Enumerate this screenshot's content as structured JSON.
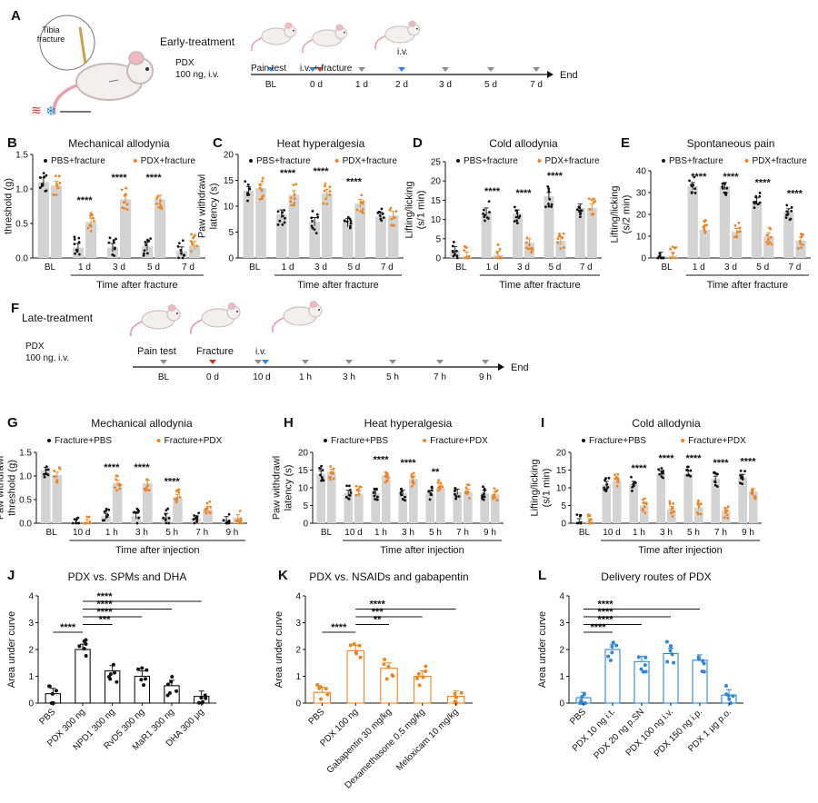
{
  "colors": {
    "pbs": "#111111",
    "pdx": "#f0831e",
    "bar_gray": "#d3d3d3",
    "blue": "#2f86d6",
    "red_arrow": "#c0392b",
    "gray_arrow": "#8c8c8c"
  },
  "timeline_early": {
    "letter": "A",
    "header": "Early-treatment",
    "drug_line1": "PDX",
    "drug_line2": "100 ng, i.v.",
    "inset_label": "Tibia\nfracture",
    "pain_test": "Pain test",
    "iv_fracture": "i.v. + fracture",
    "iv": "i.v.",
    "ticks": [
      "BL",
      "0 d",
      "1 d",
      "2 d",
      "3 d",
      "5 d",
      "7 d"
    ],
    "arrow_types": [
      "blue",
      "blue+red",
      "gray",
      "blue",
      "gray",
      "gray",
      "gray"
    ],
    "end": "End"
  },
  "timeline_late": {
    "letter": "F",
    "header": "Late-treatment",
    "drug_line1": "PDX",
    "drug_line2": "100 ng, i.v.",
    "pain_test": "Pain test",
    "fracture": "Fracture",
    "iv": "i.v.",
    "ticks": [
      "BL",
      "0 d",
      "10 d",
      "1 h",
      "3 h",
      "5 h",
      "7 h",
      "9 h"
    ],
    "arrow_types": [
      "gray",
      "red",
      "gray+blue",
      "gray",
      "gray",
      "gray",
      "gray",
      "gray"
    ],
    "end": "End"
  },
  "chart_data": [
    {
      "id": "B",
      "type": "bar",
      "title": "Mechanical allodynia",
      "ylabel": "Paw withdrawl\nthreshold (g)",
      "xlabel": "Time after fracture",
      "categories": [
        "BL",
        "1 d",
        "3 d",
        "5 d",
        "7 d"
      ],
      "ylim": [
        0,
        1.5
      ],
      "yticks": [
        0.0,
        0.5,
        1.0,
        1.5
      ],
      "series": [
        {
          "name": "PBS+fracture",
          "color": "#111111",
          "values": [
            1.1,
            0.15,
            0.15,
            0.17,
            0.1
          ]
        },
        {
          "name": "PDX+fracture",
          "color": "#f0831e",
          "values": [
            1.05,
            0.52,
            0.85,
            0.85,
            0.18
          ]
        }
      ],
      "significance": [
        "",
        "****",
        "****",
        "****",
        ""
      ]
    },
    {
      "id": "C",
      "type": "bar",
      "title": "Heat hyperalgesia",
      "ylabel": "Paw withdrawl\nlatency (s)",
      "xlabel": "Time after fracture",
      "categories": [
        "BL",
        "1 d",
        "3 d",
        "5 d",
        "7 d"
      ],
      "ylim": [
        0,
        20
      ],
      "yticks": [
        0,
        5,
        10,
        15,
        20
      ],
      "series": [
        {
          "name": "PBS+fracture",
          "color": "#111111",
          "values": [
            13,
            8.5,
            7,
            6.8,
            8
          ]
        },
        {
          "name": "PDX+fracture",
          "color": "#f0831e",
          "values": [
            13.5,
            12.2,
            12.5,
            10.5,
            8.2
          ]
        }
      ],
      "significance": [
        "",
        "****",
        "****",
        "****",
        ""
      ]
    },
    {
      "id": "D",
      "type": "bar",
      "title": "Cold allodynia",
      "ylabel": "Lifting/licking\n(s/1 min)",
      "xlabel": "Time after fracture",
      "categories": [
        "BL",
        "1 d",
        "3 d",
        "5 d",
        "7 d"
      ],
      "ylim": [
        0,
        25
      ],
      "yticks": [
        0,
        5,
        10,
        15,
        20,
        25
      ],
      "series": [
        {
          "name": "PBS+fracture",
          "color": "#111111",
          "values": [
            2,
            12,
            11.5,
            16,
            13
          ]
        },
        {
          "name": "PDX+fracture",
          "color": "#f0831e",
          "values": [
            0.5,
            0.8,
            4,
            4.5,
            13
          ]
        }
      ],
      "significance": [
        "",
        "****",
        "****",
        "****",
        ""
      ]
    },
    {
      "id": "E",
      "type": "bar",
      "title": "Spontaneous pain",
      "ylabel": "Lifting/licking\n(s/2 min)",
      "xlabel": "Time after fracture",
      "categories": [
        "BL",
        "1 d",
        "3 d",
        "5 d",
        "7 d"
      ],
      "ylim": [
        0,
        40
      ],
      "yticks": [
        0,
        10,
        20,
        30,
        40
      ],
      "series": [
        {
          "name": "PBS+fracture",
          "color": "#111111",
          "values": [
            1,
            33,
            33,
            26,
            21
          ]
        },
        {
          "name": "PDX+fracture",
          "color": "#f0831e",
          "values": [
            1,
            13,
            12,
            10,
            8
          ]
        }
      ],
      "significance": [
        "",
        "****",
        "****",
        "****",
        "****"
      ]
    },
    {
      "id": "G",
      "type": "bar",
      "title": "Mechanical allodynia",
      "ylabel": "Paw withdrawl\nthreshold (g)",
      "xlabel": "Time after injection",
      "categories": [
        "BL",
        "10 d",
        "1 h",
        "3 h",
        "5 h",
        "7 h",
        "9 h"
      ],
      "ylim": [
        0,
        1.5
      ],
      "yticks": [
        0.0,
        0.5,
        1.0,
        1.5
      ],
      "series": [
        {
          "name": "Fracture+PBS",
          "color": "#111111",
          "values": [
            1.12,
            0.03,
            0.15,
            0.15,
            0.15,
            0.1,
            0.08
          ]
        },
        {
          "name": "Fracture+PDX",
          "color": "#f0831e",
          "values": [
            1.02,
            0.02,
            0.85,
            0.85,
            0.55,
            0.3,
            0.12
          ]
        }
      ],
      "significance": [
        "",
        "",
        "****",
        "****",
        "****",
        "",
        ""
      ]
    },
    {
      "id": "H",
      "type": "bar",
      "title": "Heat hyperalgesia",
      "ylabel": "Paw withdrawl\nlatency (s)",
      "xlabel": "Time after injection",
      "categories": [
        "BL",
        "10 d",
        "1 h",
        "3 h",
        "5 h",
        "7 h",
        "9 h"
      ],
      "ylim": [
        0,
        20
      ],
      "yticks": [
        0,
        5,
        10,
        15,
        20
      ],
      "series": [
        {
          "name": "Fracture+PBS",
          "color": "#111111",
          "values": [
            14,
            8.5,
            8.5,
            8.5,
            8.5,
            8.8,
            8.5
          ]
        },
        {
          "name": "Fracture+PDX",
          "color": "#f0831e",
          "values": [
            14.5,
            8.3,
            13.5,
            12.5,
            10,
            8.8,
            8.2
          ]
        }
      ],
      "significance": [
        "",
        "",
        "****",
        "****",
        "**",
        "",
        ""
      ]
    },
    {
      "id": "I",
      "type": "bar",
      "title": "Cold allodynia",
      "ylabel": "Lifting/licking\n(s/1 min)",
      "xlabel": "Time after injection",
      "categories": [
        "BL",
        "10 d",
        "1 h",
        "3 h",
        "5 h",
        "7 h",
        "9 h"
      ],
      "ylim": [
        0,
        20
      ],
      "yticks": [
        0,
        5,
        10,
        15,
        20
      ],
      "series": [
        {
          "name": "Fracture+PBS",
          "color": "#111111",
          "values": [
            0.5,
            11,
            11,
            14,
            14,
            12.5,
            13
          ]
        },
        {
          "name": "Fracture+PDX",
          "color": "#f0831e",
          "values": [
            0.5,
            12,
            5,
            4,
            4.5,
            3.5,
            9
          ]
        }
      ],
      "significance": [
        "",
        "",
        "****",
        "****",
        "****",
        "****",
        "****"
      ]
    },
    {
      "id": "J",
      "type": "bar",
      "title": "PDX vs. SPMs and DHA",
      "ylabel": "Area under curve",
      "categories": [
        "PBS",
        "PDX 300 ng",
        "NPD1 300 ng",
        "RvD5 300 ng",
        "MaR1 300 ng",
        "DHA 300 μg"
      ],
      "ylim": [
        0,
        4
      ],
      "yticks": [
        0,
        1,
        2,
        3,
        4
      ],
      "values": [
        0.35,
        2.0,
        1.2,
        1.0,
        0.65,
        0.25
      ],
      "color": "#111111",
      "fill": "#ffffff",
      "brackets": [
        {
          "from": 0,
          "to": 1,
          "label": "****"
        },
        {
          "from": 1,
          "to": 2,
          "label": "***"
        },
        {
          "from": 1,
          "to": 3,
          "label": "****"
        },
        {
          "from": 1,
          "to": 4,
          "label": "****"
        },
        {
          "from": 1,
          "to": 5,
          "label": "****"
        }
      ]
    },
    {
      "id": "K",
      "type": "bar",
      "title": "PDX vs. NSAIDs and gabapentin",
      "ylabel": "Area under curve",
      "categories": [
        "PBS",
        "PDX 100 ng",
        "Gabapentin 30 mg/kg",
        "Dexamethasone 0.5 mg/kg",
        "Meloxicam 10 mg/kg"
      ],
      "ylim": [
        0,
        4
      ],
      "yticks": [
        0,
        1,
        2,
        3,
        4
      ],
      "values": [
        0.4,
        1.95,
        1.3,
        1.0,
        0.25
      ],
      "color": "#f0831e",
      "fill": "#ffffff",
      "brackets": [
        {
          "from": 0,
          "to": 1,
          "label": "****"
        },
        {
          "from": 1,
          "to": 2,
          "label": "**"
        },
        {
          "from": 1,
          "to": 3,
          "label": "***"
        },
        {
          "from": 1,
          "to": 4,
          "label": "****"
        }
      ]
    },
    {
      "id": "L",
      "type": "bar",
      "title": "Delivery routes of PDX",
      "ylabel": "Area under curve",
      "categories": [
        "PBS",
        "PDX 10 ng i.t.",
        "PDX 20 ng p.SN",
        "PDX 100 ng i.v.",
        "PDX 150 ng i.p.",
        "PDX 1 μg p.o."
      ],
      "ylim": [
        0,
        4
      ],
      "yticks": [
        0,
        1,
        2,
        3,
        4
      ],
      "values": [
        0.2,
        2.0,
        1.55,
        1.85,
        1.6,
        0.3
      ],
      "color": "#2f86d6",
      "fill": "#ffffff",
      "brackets": [
        {
          "from": 0,
          "to": 1,
          "label": "****"
        },
        {
          "from": 0,
          "to": 2,
          "label": "****"
        },
        {
          "from": 0,
          "to": 3,
          "label": "****"
        },
        {
          "from": 0,
          "to": 4,
          "label": "****"
        }
      ]
    }
  ]
}
